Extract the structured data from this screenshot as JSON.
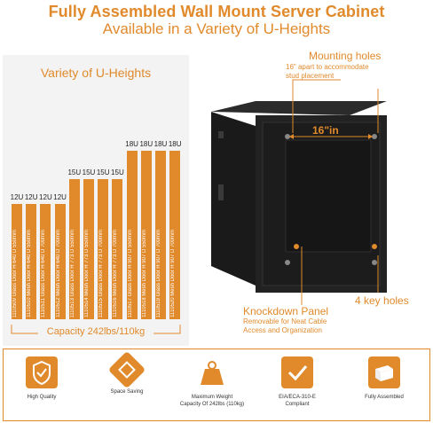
{
  "header": {
    "title": "Fully Assembled Wall Mount Server Cabinet",
    "subtitle": "Available in a Variety of U-Heights"
  },
  "left_panel": {
    "title": "Variety of U-Heights",
    "capacity": "Capacity 242lbs/110kg",
    "bars": [
      {
        "u": "12U",
        "label": "1110509 Glass Door  H 640  D 550mm",
        "height_fraction": 0.52
      },
      {
        "u": "12U",
        "label": "1110510 Mesh Door  H 640  D 550mm",
        "height_fraction": 0.52
      },
      {
        "u": "12U",
        "label": "1110511 Glass Door  H 640  D 700mm",
        "height_fraction": 0.52
      },
      {
        "u": "12U",
        "label": "1110512 Mesh Door  H 640  D 700mm",
        "height_fraction": 0.52
      },
      {
        "u": "15U",
        "label": "1110513 Glass Door  H 773  D 550mm",
        "height_fraction": 0.63
      },
      {
        "u": "15U",
        "label": "1110514 Mesh Door  H 773  D 550mm",
        "height_fraction": 0.63
      },
      {
        "u": "15U",
        "label": "1110515 Glass Door  H 773  D 700mm",
        "height_fraction": 0.63
      },
      {
        "u": "15U",
        "label": "1110516 Mesh Door  H 773  D 700mm",
        "height_fraction": 0.63
      },
      {
        "u": "18U",
        "label": "1110517 Glass Door  H 907  D 550mm",
        "height_fraction": 0.76
      },
      {
        "u": "18U",
        "label": "1110518 Mesh Door  H 907  D 550mm",
        "height_fraction": 0.76
      },
      {
        "u": "18U",
        "label": "1110519 Glass Door  H 907  D 700mm",
        "height_fraction": 0.76
      },
      {
        "u": "18U",
        "label": "1110520 Mesh Door  H 907  D 700mm",
        "height_fraction": 0.76
      }
    ]
  },
  "annotations": {
    "mounting_title": "Mounting holes",
    "mounting_desc1": "16\" apart to accommodate",
    "mounting_desc2": "stud placement",
    "dimension": "16\"in",
    "knockdown_title": "Knockdown Panel",
    "knockdown_desc1": "Removable for Neat Cable",
    "knockdown_desc2": "Access and Organization",
    "key_holes": "4 key holes"
  },
  "features": [
    {
      "label1": "High Quality",
      "label2": "",
      "icon": "shield-check-icon"
    },
    {
      "label1": "Space Saving",
      "label2": "",
      "icon": "cube-icon"
    },
    {
      "label1": "Maximum Weight",
      "label2": "Capacity Of 242lbs (110kg)",
      "icon": "weight-icon"
    },
    {
      "label1": "EIA/ECA-310-E",
      "label2": "Compliant",
      "icon": "checkmark-icon"
    },
    {
      "label1": "Fully Assembled",
      "label2": "",
      "icon": "box-icon"
    }
  ],
  "colors": {
    "accent": "#e08a2c",
    "cabinet": "#1b1b1b"
  }
}
